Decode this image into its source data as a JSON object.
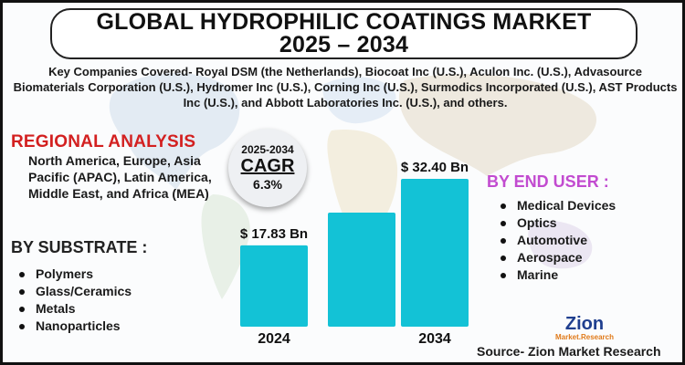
{
  "title": {
    "line1": "GLOBAL HYDROPHILIC COATINGS MARKET",
    "line2": "2025 – 2034"
  },
  "companies_text": "Key Companies Covered- Royal DSM (the Netherlands), Biocoat Inc (U.S.), Aculon Inc. (U.S.), Advasource Biomaterials Corporation (U.S.), Hydromer Inc (U.S.), Corning Inc (U.S.), Surmodics Incorporated (U.S.), AST Products Inc (U.S.), and Abbott Laboratories Inc. (U.S.), and others.",
  "regional": {
    "heading": "REGIONAL ANALYSIS",
    "text": "North America, Europe, Asia Pacific (APAC), Latin America, Middle East, and Africa (MEA)"
  },
  "substrate": {
    "heading": "BY SUBSTRATE :",
    "items": [
      "Polymers",
      "Glass/Ceramics",
      "Metals",
      "Nanoparticles"
    ]
  },
  "end_user": {
    "heading": "BY END USER :",
    "items": [
      "Medical Devices",
      "Optics",
      "Automotive",
      "Aerospace",
      "Marine"
    ]
  },
  "cagr": {
    "period": "2025-2034",
    "label": "CAGR",
    "value": "6.3%"
  },
  "source": "Source- Zion Market Research",
  "logo": {
    "name": "Zion",
    "sub": "Market.Research"
  },
  "colors": {
    "bar": "#13c2d6",
    "regional_heading": "#d32020",
    "end_user_heading": "#c24bd0"
  },
  "chart_data": {
    "type": "bar",
    "categories": [
      "2024",
      "",
      "2034"
    ],
    "values": [
      17.83,
      25.0,
      32.4
    ],
    "data_labels": [
      "$ 17.83 Bn",
      "",
      "$ 32.40 Bn"
    ],
    "tick_labels": [
      "2024",
      "",
      "2034"
    ],
    "unit": "USD Billion",
    "title": "",
    "xlabel": "",
    "ylabel": "",
    "ylim": [
      0,
      35
    ],
    "grid": false,
    "legend": "none"
  }
}
